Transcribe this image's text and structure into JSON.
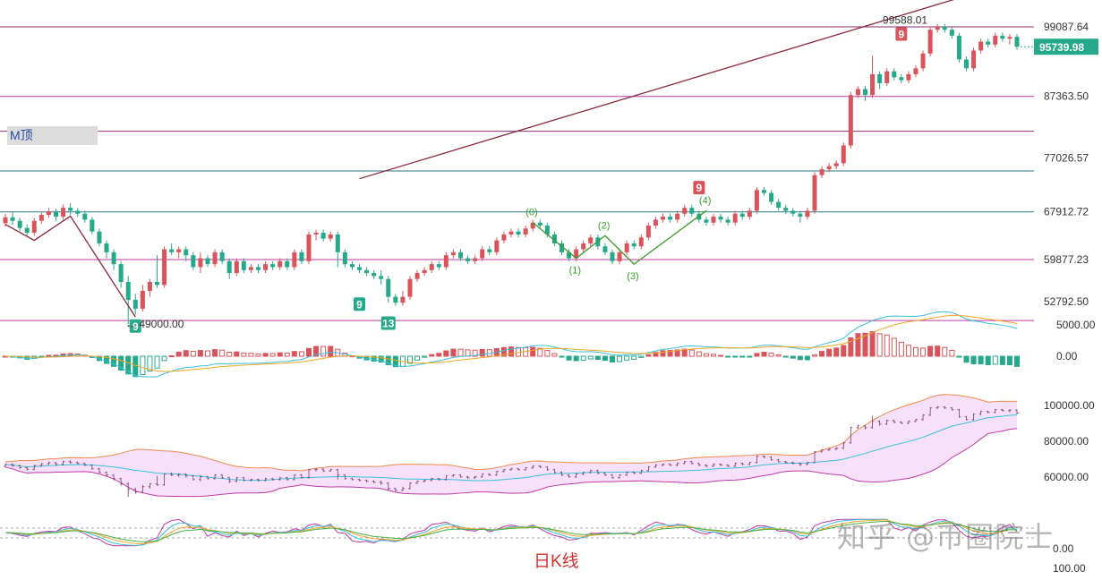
{
  "labels": {
    "mjuan": "M顶",
    "caption": "日K线",
    "watermark": "知乎 @币圈院士"
  },
  "colors": {
    "up": "#d9545a",
    "down": "#26a98a",
    "trend": "#8a2b3f",
    "hline_purple": "#8e2a72",
    "hline_teal": "#2d7a86",
    "hline_magenta": "#c03aa6",
    "price_tag": "#26a98a",
    "elliott": "#3a9a2a"
  },
  "chart_data": [
    {
      "type": "candlestick",
      "name": "main",
      "y_ticks": [
        "99087.64",
        "87363.50",
        "77026.57",
        "67912.72",
        "59877.23",
        "52792.50"
      ],
      "y_tick_values": [
        99087.64,
        87363.5,
        77026.57,
        67912.72,
        59877.23,
        52792.5
      ],
      "current_price": "95739.98",
      "current_price_value": 95739.98,
      "high_label": "99588.01",
      "high_value": 99588.01,
      "low_label": "49000.00",
      "low_value": 49000,
      "levels": [
        {
          "value": 99087.64,
          "color": "hline_purple"
        },
        {
          "value": 87363.5,
          "color": "hline_magenta"
        },
        {
          "value": 81500,
          "color": "hline_purple"
        },
        {
          "value": 74800,
          "color": "hline_teal"
        },
        {
          "value": 67912.72,
          "color": "hline_teal"
        },
        {
          "value": 59877.23,
          "color": "hline_magenta"
        },
        {
          "value": 49600,
          "color": "hline_magenta"
        }
      ],
      "trendline": [
        {
          "i": 0,
          "v": 59500
        },
        {
          "i": 111,
          "v": 91200
        }
      ],
      "m_top_path": [
        {
          "i": 0,
          "v": 65800
        },
        {
          "i": 4,
          "v": 63100
        },
        {
          "i": 9,
          "v": 67200
        },
        {
          "i": 18,
          "v": 50200
        }
      ],
      "elliott_path": [
        {
          "i": 73,
          "v": 66100,
          "label": "(0)"
        },
        {
          "i": 79,
          "v": 60100,
          "label": "(1)"
        },
        {
          "i": 83,
          "v": 63900,
          "label": "(2)"
        },
        {
          "i": 87,
          "v": 59100,
          "label": "(3)"
        },
        {
          "i": 97,
          "v": 68100,
          "label": "(4)"
        }
      ],
      "td_markers": [
        {
          "i": 18,
          "text": "9",
          "kind": "buy",
          "v": 50700
        },
        {
          "i": 49,
          "text": "9",
          "kind": "buy",
          "v": 54400
        },
        {
          "i": 53,
          "text": "13",
          "kind": "buy",
          "v": 51200
        },
        {
          "i": 96,
          "text": "9",
          "kind": "sell",
          "v": 69800
        },
        {
          "i": 124,
          "text": "9",
          "kind": "sell",
          "v": 95700
        }
      ],
      "candles": [
        {
          "o": 66.0,
          "c": 67.0,
          "h": 67.6,
          "l": 65.4
        },
        {
          "o": 67.0,
          "c": 66.4,
          "h": 67.8,
          "l": 65.7
        },
        {
          "o": 66.4,
          "c": 65.2,
          "h": 66.9,
          "l": 64.7
        },
        {
          "o": 65.2,
          "c": 64.4,
          "h": 65.8,
          "l": 63.7
        },
        {
          "o": 64.4,
          "c": 66.4,
          "h": 66.9,
          "l": 63.9
        },
        {
          "o": 66.4,
          "c": 67.4,
          "h": 67.9,
          "l": 65.9
        },
        {
          "o": 67.4,
          "c": 68.0,
          "h": 68.6,
          "l": 66.9
        },
        {
          "o": 68.0,
          "c": 67.1,
          "h": 68.4,
          "l": 66.4
        },
        {
          "o": 67.1,
          "c": 68.6,
          "h": 69.1,
          "l": 66.6
        },
        {
          "o": 68.6,
          "c": 68.1,
          "h": 69.4,
          "l": 67.4
        },
        {
          "o": 68.1,
          "c": 67.6,
          "h": 68.6,
          "l": 67.1
        },
        {
          "o": 67.6,
          "c": 66.6,
          "h": 68.1,
          "l": 66.1
        },
        {
          "o": 66.6,
          "c": 64.6,
          "h": 67.1,
          "l": 64.1
        },
        {
          "o": 64.6,
          "c": 62.6,
          "h": 65.1,
          "l": 62.1
        },
        {
          "o": 62.6,
          "c": 61.1,
          "h": 63.1,
          "l": 60.1
        },
        {
          "o": 61.1,
          "c": 59.1,
          "h": 61.6,
          "l": 58.1
        },
        {
          "o": 59.1,
          "c": 56.1,
          "h": 59.6,
          "l": 55.1
        },
        {
          "o": 56.1,
          "c": 53.1,
          "h": 57.1,
          "l": 49.0
        },
        {
          "o": 53.1,
          "c": 51.6,
          "h": 54.1,
          "l": 50.6
        },
        {
          "o": 51.6,
          "c": 54.6,
          "h": 55.6,
          "l": 51.1
        },
        {
          "o": 54.6,
          "c": 56.1,
          "h": 56.6,
          "l": 53.6
        },
        {
          "o": 56.1,
          "c": 55.6,
          "h": 60.6,
          "l": 55.1
        },
        {
          "o": 55.6,
          "c": 61.6,
          "h": 62.1,
          "l": 55.1
        },
        {
          "o": 61.6,
          "c": 61.1,
          "h": 62.6,
          "l": 60.6
        },
        {
          "o": 61.1,
          "c": 61.6,
          "h": 62.1,
          "l": 60.1
        },
        {
          "o": 61.6,
          "c": 60.6,
          "h": 62.1,
          "l": 59.6
        },
        {
          "o": 60.6,
          "c": 58.6,
          "h": 61.1,
          "l": 58.1
        },
        {
          "o": 58.6,
          "c": 60.1,
          "h": 61.1,
          "l": 57.6
        },
        {
          "o": 60.1,
          "c": 59.1,
          "h": 60.6,
          "l": 58.6
        },
        {
          "o": 59.1,
          "c": 61.1,
          "h": 61.6,
          "l": 58.6
        },
        {
          "o": 61.1,
          "c": 59.6,
          "h": 61.6,
          "l": 59.1
        },
        {
          "o": 59.6,
          "c": 57.6,
          "h": 60.1,
          "l": 56.6
        },
        {
          "o": 57.6,
          "c": 59.6,
          "h": 60.1,
          "l": 57.1
        },
        {
          "o": 59.6,
          "c": 58.1,
          "h": 60.1,
          "l": 57.6
        },
        {
          "o": 58.1,
          "c": 58.6,
          "h": 59.1,
          "l": 57.6
        },
        {
          "o": 58.6,
          "c": 58.1,
          "h": 59.1,
          "l": 57.6
        },
        {
          "o": 58.1,
          "c": 59.1,
          "h": 59.6,
          "l": 57.6
        },
        {
          "o": 59.1,
          "c": 58.6,
          "h": 59.6,
          "l": 58.1
        },
        {
          "o": 58.6,
          "c": 59.6,
          "h": 60.1,
          "l": 58.1
        },
        {
          "o": 59.6,
          "c": 58.6,
          "h": 60.1,
          "l": 58.1
        },
        {
          "o": 58.6,
          "c": 61.1,
          "h": 61.6,
          "l": 58.1
        },
        {
          "o": 61.1,
          "c": 59.6,
          "h": 61.6,
          "l": 59.1
        },
        {
          "o": 59.6,
          "c": 64.1,
          "h": 64.6,
          "l": 59.1
        },
        {
          "o": 64.1,
          "c": 64.4,
          "h": 64.9,
          "l": 63.1
        },
        {
          "o": 64.4,
          "c": 63.4,
          "h": 64.9,
          "l": 62.9
        },
        {
          "o": 63.4,
          "c": 64.1,
          "h": 64.6,
          "l": 62.9
        },
        {
          "o": 64.1,
          "c": 61.1,
          "h": 64.6,
          "l": 58.6
        },
        {
          "o": 61.1,
          "c": 59.1,
          "h": 61.6,
          "l": 58.6
        },
        {
          "o": 59.1,
          "c": 58.6,
          "h": 59.6,
          "l": 58.1
        },
        {
          "o": 58.6,
          "c": 58.1,
          "h": 59.1,
          "l": 57.6
        },
        {
          "o": 58.1,
          "c": 57.6,
          "h": 58.6,
          "l": 57.1
        },
        {
          "o": 57.6,
          "c": 57.1,
          "h": 58.1,
          "l": 56.6
        },
        {
          "o": 57.1,
          "c": 56.6,
          "h": 58.1,
          "l": 55.6
        },
        {
          "o": 56.6,
          "c": 53.6,
          "h": 57.1,
          "l": 52.6
        },
        {
          "o": 53.6,
          "c": 52.6,
          "h": 54.1,
          "l": 52.1
        },
        {
          "o": 52.6,
          "c": 53.6,
          "h": 54.6,
          "l": 52.1
        },
        {
          "o": 53.6,
          "c": 56.6,
          "h": 57.1,
          "l": 53.1
        },
        {
          "o": 56.6,
          "c": 57.6,
          "h": 58.1,
          "l": 56.1
        },
        {
          "o": 57.6,
          "c": 58.1,
          "h": 58.6,
          "l": 57.1
        },
        {
          "o": 58.1,
          "c": 59.1,
          "h": 59.6,
          "l": 57.6
        },
        {
          "o": 59.1,
          "c": 58.6,
          "h": 59.6,
          "l": 58.1
        },
        {
          "o": 58.6,
          "c": 60.6,
          "h": 61.1,
          "l": 58.1
        },
        {
          "o": 60.6,
          "c": 61.1,
          "h": 61.6,
          "l": 60.1
        },
        {
          "o": 61.1,
          "c": 60.1,
          "h": 61.6,
          "l": 59.6
        },
        {
          "o": 60.1,
          "c": 59.6,
          "h": 60.6,
          "l": 59.1
        },
        {
          "o": 59.6,
          "c": 60.1,
          "h": 60.6,
          "l": 59.1
        },
        {
          "o": 60.1,
          "c": 61.6,
          "h": 62.1,
          "l": 59.6
        },
        {
          "o": 61.6,
          "c": 61.1,
          "h": 62.1,
          "l": 60.6
        },
        {
          "o": 61.1,
          "c": 63.1,
          "h": 63.6,
          "l": 60.6
        },
        {
          "o": 63.1,
          "c": 64.1,
          "h": 64.6,
          "l": 62.6
        },
        {
          "o": 64.1,
          "c": 64.6,
          "h": 65.1,
          "l": 63.6
        },
        {
          "o": 64.6,
          "c": 64.1,
          "h": 65.1,
          "l": 63.6
        },
        {
          "o": 64.1,
          "c": 65.1,
          "h": 65.6,
          "l": 63.6
        },
        {
          "o": 65.1,
          "c": 66.1,
          "h": 66.6,
          "l": 64.6
        },
        {
          "o": 66.1,
          "c": 65.6,
          "h": 66.6,
          "l": 65.1
        },
        {
          "o": 65.6,
          "c": 64.1,
          "h": 66.1,
          "l": 63.6
        },
        {
          "o": 64.1,
          "c": 62.6,
          "h": 64.6,
          "l": 62.1
        },
        {
          "o": 62.6,
          "c": 61.1,
          "h": 63.1,
          "l": 60.6
        },
        {
          "o": 61.1,
          "c": 60.1,
          "h": 61.6,
          "l": 59.6
        },
        {
          "o": 60.1,
          "c": 61.6,
          "h": 62.1,
          "l": 59.6
        },
        {
          "o": 61.6,
          "c": 62.6,
          "h": 63.1,
          "l": 61.1
        },
        {
          "o": 62.6,
          "c": 63.6,
          "h": 64.1,
          "l": 62.1
        },
        {
          "o": 63.6,
          "c": 62.1,
          "h": 64.1,
          "l": 61.6
        },
        {
          "o": 62.1,
          "c": 61.1,
          "h": 62.6,
          "l": 60.6
        },
        {
          "o": 61.1,
          "c": 59.6,
          "h": 61.6,
          "l": 59.1
        },
        {
          "o": 59.6,
          "c": 61.1,
          "h": 61.6,
          "l": 59.1
        },
        {
          "o": 61.1,
          "c": 62.6,
          "h": 63.1,
          "l": 60.6
        },
        {
          "o": 62.6,
          "c": 62.1,
          "h": 63.1,
          "l": 61.6
        },
        {
          "o": 62.1,
          "c": 63.6,
          "h": 64.1,
          "l": 61.6
        },
        {
          "o": 63.6,
          "c": 65.6,
          "h": 66.1,
          "l": 63.1
        },
        {
          "o": 65.6,
          "c": 66.6,
          "h": 67.1,
          "l": 65.1
        },
        {
          "o": 66.6,
          "c": 67.1,
          "h": 67.6,
          "l": 66.1
        },
        {
          "o": 67.1,
          "c": 66.6,
          "h": 67.6,
          "l": 66.1
        },
        {
          "o": 66.6,
          "c": 67.6,
          "h": 68.1,
          "l": 66.1
        },
        {
          "o": 67.6,
          "c": 68.6,
          "h": 69.1,
          "l": 67.1
        },
        {
          "o": 68.6,
          "c": 67.6,
          "h": 69.1,
          "l": 67.1
        },
        {
          "o": 67.6,
          "c": 66.6,
          "h": 68.1,
          "l": 66.1
        },
        {
          "o": 66.6,
          "c": 66.1,
          "h": 67.1,
          "l": 65.6
        },
        {
          "o": 66.1,
          "c": 67.1,
          "h": 67.6,
          "l": 65.6
        },
        {
          "o": 67.1,
          "c": 66.6,
          "h": 67.6,
          "l": 66.1
        },
        {
          "o": 66.6,
          "c": 66.1,
          "h": 67.1,
          "l": 65.6
        },
        {
          "o": 66.1,
          "c": 67.6,
          "h": 68.1,
          "l": 65.6
        },
        {
          "o": 67.6,
          "c": 67.1,
          "h": 68.1,
          "l": 66.6
        },
        {
          "o": 67.1,
          "c": 68.1,
          "h": 68.6,
          "l": 66.6
        },
        {
          "o": 68.1,
          "c": 71.6,
          "h": 72.1,
          "l": 67.6
        },
        {
          "o": 71.6,
          "c": 71.1,
          "h": 72.1,
          "l": 70.6
        },
        {
          "o": 71.1,
          "c": 69.6,
          "h": 71.6,
          "l": 69.1
        },
        {
          "o": 69.6,
          "c": 68.6,
          "h": 70.1,
          "l": 68.1
        },
        {
          "o": 68.6,
          "c": 68.1,
          "h": 69.1,
          "l": 67.6
        },
        {
          "o": 68.1,
          "c": 67.6,
          "h": 68.6,
          "l": 67.1
        },
        {
          "o": 67.6,
          "c": 67.1,
          "h": 68.1,
          "l": 66.1
        },
        {
          "o": 67.1,
          "c": 68.1,
          "h": 68.6,
          "l": 66.6
        },
        {
          "o": 68.1,
          "c": 74.1,
          "h": 74.6,
          "l": 67.6
        },
        {
          "o": 74.1,
          "c": 75.1,
          "h": 75.6,
          "l": 73.6
        },
        {
          "o": 75.1,
          "c": 75.6,
          "h": 76.1,
          "l": 74.6
        },
        {
          "o": 75.6,
          "c": 76.1,
          "h": 76.6,
          "l": 75.1
        },
        {
          "o": 76.1,
          "c": 79.1,
          "h": 79.6,
          "l": 75.6
        },
        {
          "o": 79.1,
          "c": 87.6,
          "h": 88.1,
          "l": 78.6
        },
        {
          "o": 87.6,
          "c": 88.6,
          "h": 89.1,
          "l": 87.1
        },
        {
          "o": 88.6,
          "c": 87.6,
          "h": 89.1,
          "l": 86.6
        },
        {
          "o": 87.6,
          "c": 91.1,
          "h": 94.2,
          "l": 87.1
        },
        {
          "o": 91.1,
          "c": 89.6,
          "h": 91.6,
          "l": 88.6
        },
        {
          "o": 89.6,
          "c": 91.6,
          "h": 92.1,
          "l": 89.1
        },
        {
          "o": 91.6,
          "c": 90.6,
          "h": 92.1,
          "l": 90.1
        },
        {
          "o": 90.6,
          "c": 90.1,
          "h": 91.1,
          "l": 89.6
        },
        {
          "o": 90.1,
          "c": 91.1,
          "h": 91.6,
          "l": 89.6
        },
        {
          "o": 91.1,
          "c": 92.1,
          "h": 92.6,
          "l": 90.6
        },
        {
          "o": 92.1,
          "c": 94.6,
          "h": 95.1,
          "l": 91.6
        },
        {
          "o": 94.6,
          "c": 98.6,
          "h": 99.1,
          "l": 94.1
        },
        {
          "o": 98.6,
          "c": 99.1,
          "h": 99.6,
          "l": 98.1
        },
        {
          "o": 99.1,
          "c": 98.6,
          "h": 99.6,
          "l": 98.1
        },
        {
          "o": 98.6,
          "c": 97.6,
          "h": 99.1,
          "l": 97.1
        },
        {
          "o": 97.6,
          "c": 93.6,
          "h": 98.1,
          "l": 93.1
        },
        {
          "o": 93.6,
          "c": 92.1,
          "h": 94.1,
          "l": 91.6
        },
        {
          "o": 92.1,
          "c": 95.1,
          "h": 95.6,
          "l": 91.6
        },
        {
          "o": 95.1,
          "c": 96.6,
          "h": 97.1,
          "l": 94.6
        },
        {
          "o": 96.6,
          "c": 96.1,
          "h": 97.1,
          "l": 95.6
        },
        {
          "o": 96.1,
          "c": 97.6,
          "h": 98.1,
          "l": 95.6
        },
        {
          "o": 97.6,
          "c": 97.1,
          "h": 98.1,
          "l": 96.6
        },
        {
          "o": 97.1,
          "c": 97.4,
          "h": 97.9,
          "l": 96.1
        },
        {
          "o": 97.4,
          "c": 95.74,
          "h": 97.9,
          "l": 95.2
        }
      ]
    },
    {
      "type": "macd",
      "name": "macd-panel",
      "y_ticks": [
        "5000.00",
        "0.00"
      ],
      "y_tick_values": [
        5000,
        0
      ],
      "ylim": [
        -5200,
        9000
      ]
    },
    {
      "type": "bollinger",
      "name": "boll-panel",
      "y_ticks": [
        "100000.00",
        "80000.00",
        "60000.00"
      ],
      "y_tick_values": [
        100000,
        80000,
        60000
      ],
      "ylim": [
        45000,
        110000
      ]
    },
    {
      "type": "oscillator",
      "name": "osc-panel",
      "y_ticks": [
        "0.00",
        "100.00"
      ],
      "y_tick_values": [
        0,
        100
      ],
      "ylim": [
        -40,
        110
      ]
    }
  ]
}
